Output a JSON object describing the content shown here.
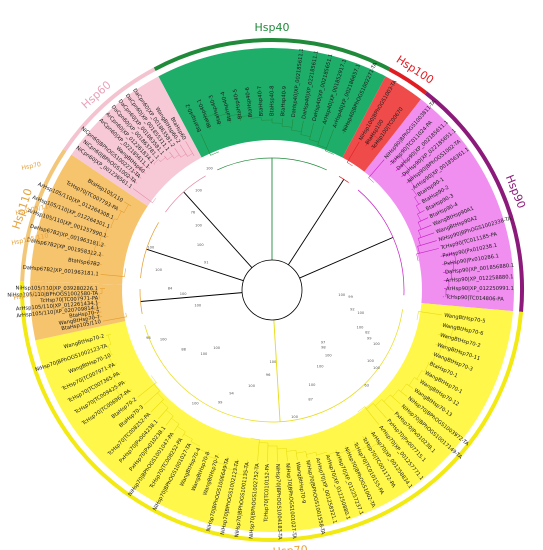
{
  "figure": {
    "clades": [
      {
        "key": "hsp40",
        "label": "Hsp40",
        "label_color": "#1f8a3a",
        "ring_color": "#1f8a3a",
        "fill": "#1fae6a",
        "line": "#1f8a3a",
        "leaves": [
          "BtaHsp40-2",
          "BtaHsp40-1",
          "BtaHsp40-3",
          "BtaHsp40-4",
          "BtaHsp40-5",
          "BtaHsp40-6",
          "BtaHsp40-7",
          "BtaHsp40-8",
          "BtaHsp40-9",
          "DaHsp40|XP_002185611.1",
          "DaHsp40|XP_022185611.1",
          "DaHsp40|XP_002185651.1",
          "ArHsp40|XP_001852917.1",
          "ArHsp40|XP_002186657.1",
          "NiHsp40|BPhOGS1002271-TA"
        ]
      },
      {
        "key": "hsp100",
        "label": "Hsp100",
        "label_color": "#e11d24",
        "ring_color": "#e11d24",
        "fill": "#f04b4b",
        "line": "#e11d24",
        "leaves": [
          "NiHsp100|BPhOGS1003-TA",
          "BtaHsp100",
          "TcHsp100|TC00670"
        ]
      },
      {
        "key": "hsp90",
        "label": "Hsp90",
        "label_color": "#8b1a7a",
        "ring_color": "#8b1a7a",
        "fill": "#f08ff0",
        "line": "#c61ec6",
        "leaves": [
          "NiHsp90|BPhOGS1003811-TA",
          "TcHsp90|TC011024-PA",
          "DaHsp90|XP_002185611.1",
          "DaHsp90|XP_022185651.1",
          "NiHsp90|BPhOGS1002-TA",
          "ArHsp90|XP_001856361.1",
          "BtaHsp90-1",
          "BtaHsp90-2",
          "BtaHsp90-3",
          "BtaHsp90-4",
          "WangBtHsp90A1",
          "WangBtHsp90A2",
          "NiHsp90|BPhOGS1002338-TA",
          "TcHsp90|TC011185-PA",
          "PxHsp90|Px010238.1",
          "PxHsp90|Px010286.1",
          "DaHsp90|XP_001856880.1",
          "ArHsp90|XP_012258880.1",
          "ArHsp90|XP_012250991.1",
          "TcHsp90|TC014806-PA"
        ]
      },
      {
        "key": "hsp60",
        "label": "Hsp60",
        "label_color": "#e9a3b8",
        "ring_color": "#f4c3d0",
        "fill": "#f7c9d6",
        "line": "#e48aa4",
        "leaves": [
          "NiCpn60|XP_001236561.1",
          "NiCpn60|BPhOGS1002-TA",
          "NiCpn60|BPhOGS1002271-TA",
          "WangBtHsp60",
          "ArCpn60|XP_022185611.1",
          "ArCpn60|XP_012261834.1",
          "DaCpn60|XP_001863781.1",
          "DaCpn60|XP_001863581.1",
          "DaCpn60|XP_001855311.1",
          "DaCpn60|XP_001863581.2",
          "WangBtHsp60-2",
          "BtaHsp60"
        ]
      },
      {
        "key": "hsp110",
        "label": "Hsp110",
        "label_color": "#e6a23c",
        "ring_color": "#f2c77a",
        "fill": "#f7c46e",
        "line": "#e39b2a",
        "leaves": [
          "DaHsp67B2|XP_001963181.1",
          "BtaHsp67B2",
          "DaHsp67B2|XP_001958312.1",
          "DaHsp67B2|XP_001963181.2",
          "ArHsp105/110|XP_001257990.1",
          "ArHsp105/110|XP_012264301.1",
          "ArHsp105/110|XP_012264308.1",
          "TcHsp70|TC007793-PA",
          "BtaHsp105/110"
        ]
      },
      {
        "key": "hsp70",
        "label": "Hsp70",
        "label_color": "#e6a23c",
        "ring_color": "#f2ea12",
        "fill": "#fff84a",
        "line": "#e7dc10",
        "leaves": [
          "WangBtHsp70-5",
          "WangBtHsp70-6",
          "WangBtHsp70-2",
          "WangBtHsp70-11",
          "WangBtHsp70-3",
          "BtaHsp70-1",
          "WangBtHsp70-1",
          "WangBtHsp70-12",
          "WangBtHsp70-13",
          "NiHsp70|BPhOGS1003972-TA",
          "NiHsp70|BPhOGS10017149-TA",
          "PxHsp70|Px010238.1",
          "PxHsp70|Px007715.1",
          "ArHsp70|XP_001257771.1",
          "ArHsp70|XP_001258834.1",
          "TcHsp70|TC001172-PA",
          "TcHsp70|TC010155-PA",
          "NiHsp70|BPhOGS1002-TA",
          "ArHsp70|XP_012257237.1",
          "ArHsp70|XP_012250880.1",
          "ArHsp70|XP_001258321.1",
          "NiHsp70|BPhOGS1001558-TA",
          "WangBtHsp70-9",
          "NiHsp70|BPhOGS1001027-TA",
          "NiHsp70|BPhOGS1004183-TA",
          "TcHsp70|TC010152-PA",
          "NiHsp70|BPhOGS1002752-TA",
          "NiHsp70|BPhOGS1001135-TA",
          "NiHsp70|BPhOGS1002123-TA",
          "NiHsp70|BPhOGS1006649-TA",
          "WangBtHsp70-7",
          "WangBtHsp70-8",
          "WangBtHsp70-4",
          "NiHsp70|BPhOGS1001027-TA",
          "TcHsp70|TC008252-PA",
          "NiHsp70|BPhOGS1001047-PA",
          "PxHsp70|Px010238.1",
          "PxHsp70|Px004238.1",
          "TcHsp70|TC008252-PA",
          "BtaHsp70-3",
          "BtaHsp70-2",
          "TcHsp70|TC006967-PA",
          "TcHsp70|TC009425-PA",
          "TcHsp70|TC007365-PA",
          "TcHsp70|TC007971-PA",
          "WangBtHsp70-10",
          "NiHsp70|BPhOGS1002123-TA",
          "WangBtHsp70-2"
        ]
      },
      {
        "key": "hsp105",
        "label": "",
        "label_color": "#e6a23c",
        "ring_color": "#f2ea12",
        "fill": "#f7c46e",
        "line": "#e39b2a",
        "leaves": [
          "BtaHsp105/110",
          "WangBtHsp70-7",
          "BtaHsp70-7",
          "ArHsp105/110|XP_020709814.1",
          "ArHsp105/110|XP_012261434.1",
          "TcHsp70|TC007971-PA",
          "NiHsp105/110|BPhOGS1002580-TA",
          "NiHsp105/110|XP_039280226.1"
        ]
      }
    ],
    "side_labels": [
      "Hsp70",
      "Hsp105/110",
      "Hsp105/110",
      "Hsp105/110"
    ],
    "support_values": [
      "100",
      "92",
      "100",
      "99",
      "100",
      "63",
      "98",
      "100",
      "100",
      "87",
      "100",
      "100",
      "96",
      "100",
      "94",
      "99",
      "100",
      "100",
      "100",
      "88",
      "100",
      "98",
      "100",
      "100",
      "84",
      "100",
      "100",
      "91",
      "100",
      "100",
      "76",
      "100",
      "100",
      "99",
      "100",
      "82",
      "100",
      "100",
      "97",
      "100"
    ],
    "colors": {
      "backbone": "#000000",
      "hsp40_branch": "#1f8a3a",
      "hsp70_branch": "#e7dc10"
    }
  }
}
